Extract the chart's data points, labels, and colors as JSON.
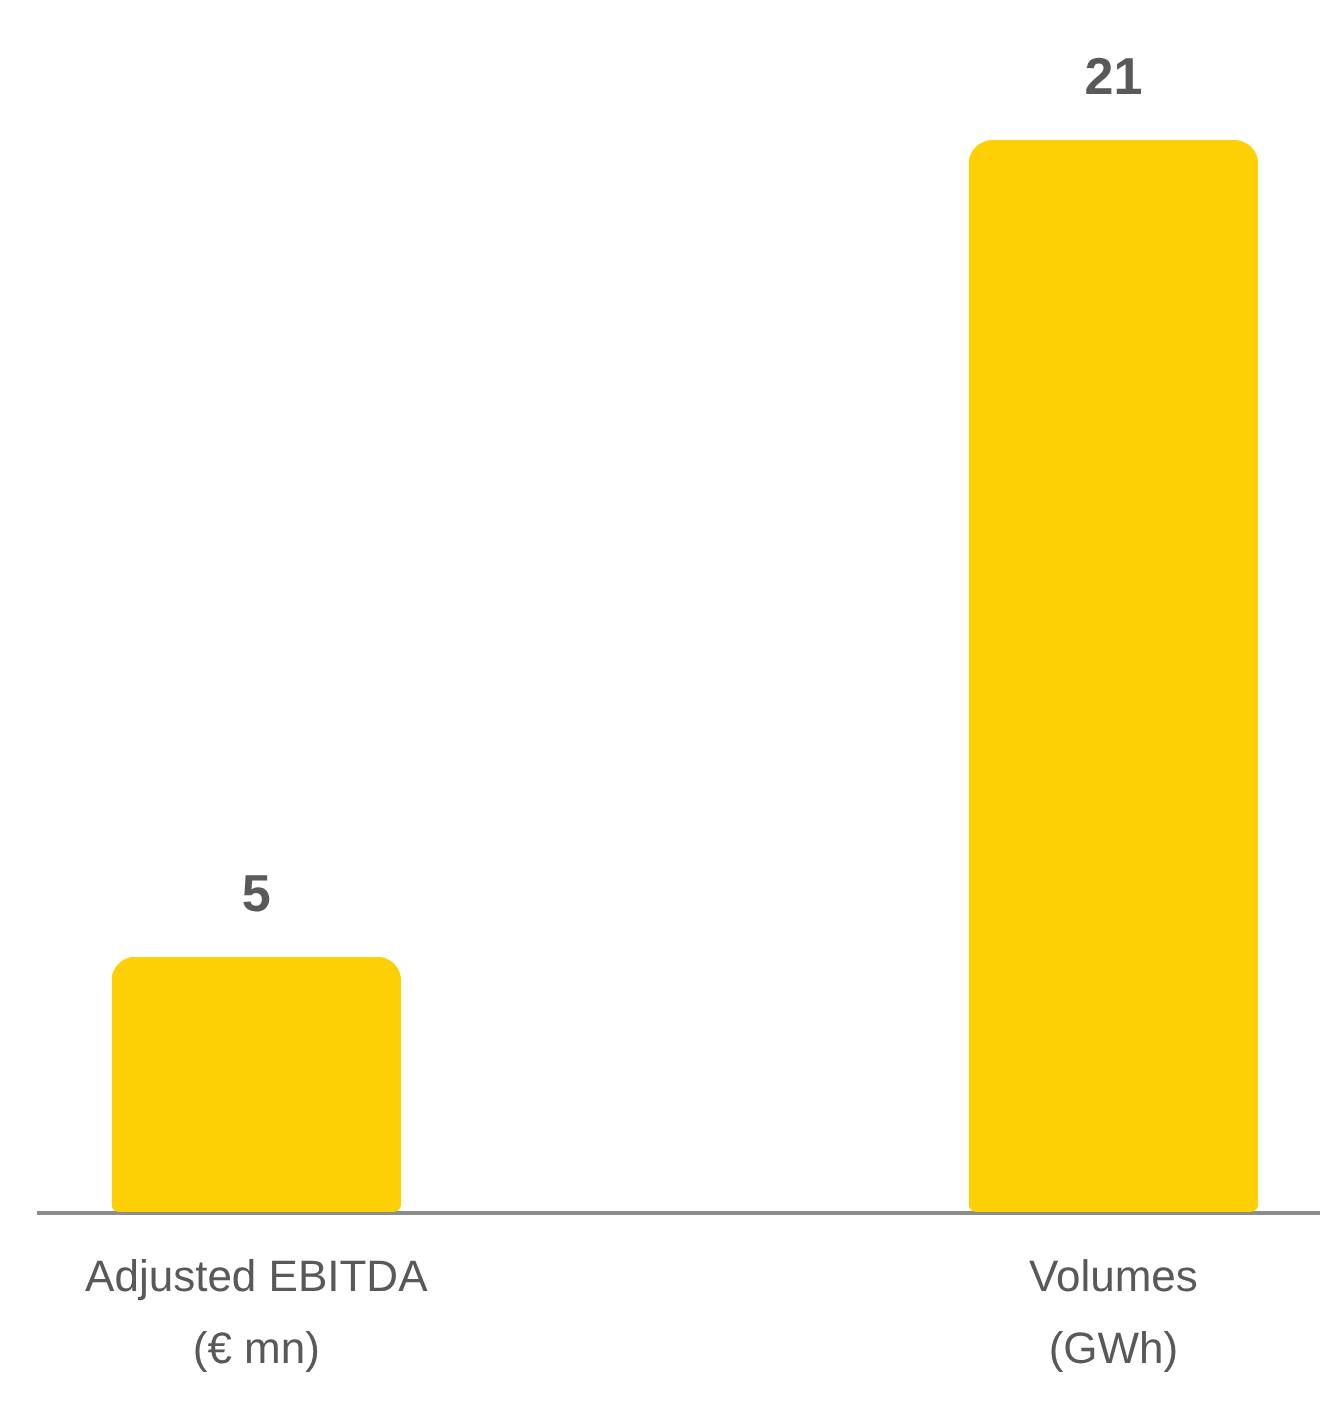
{
  "chart_data": {
    "type": "bar",
    "categories": [
      "Adjusted EBITDA\n(€ mn)",
      "Volumes\n(GWh)"
    ],
    "values": [
      5,
      21
    ],
    "color": "#fdd005",
    "data_labels": true
  }
}
